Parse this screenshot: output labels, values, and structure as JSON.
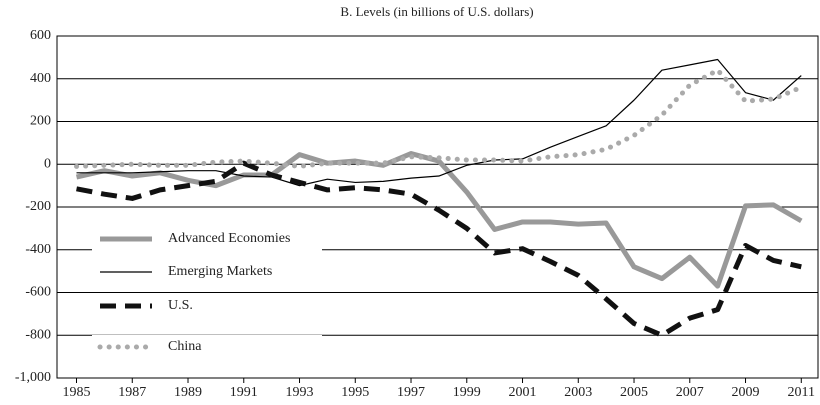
{
  "chart_data": {
    "type": "line",
    "title": "B. Levels (in billions of U.S. dollars)",
    "x": [
      1985,
      1986,
      1987,
      1988,
      1989,
      1990,
      1991,
      1992,
      1993,
      1994,
      1995,
      1996,
      1997,
      1998,
      1999,
      2000,
      2001,
      2002,
      2003,
      2004,
      2005,
      2006,
      2007,
      2008,
      2009,
      2010,
      2011
    ],
    "xlim": [
      1984.3,
      2011.6
    ],
    "xticks": [
      1985,
      1987,
      1989,
      1991,
      1993,
      1995,
      1997,
      1999,
      2001,
      2003,
      2005,
      2007,
      2009,
      2011
    ],
    "ylim": [
      -1000,
      600
    ],
    "yticks": [
      600,
      400,
      200,
      0,
      -200,
      -400,
      -600,
      -800,
      {
        "value": -1000,
        "label": "-1,000"
      }
    ],
    "grid": true,
    "legend": "lower left",
    "series": [
      {
        "name": "Advanced Economies",
        "color": "#999999",
        "style": "thick",
        "values": [
          -60,
          -30,
          -55,
          -40,
          -75,
          -100,
          -50,
          -50,
          45,
          5,
          15,
          -5,
          50,
          15,
          -130,
          -305,
          -270,
          -270,
          -280,
          -275,
          -480,
          -535,
          -435,
          -570,
          -195,
          -190,
          -265
        ]
      },
      {
        "name": "Emerging Markets",
        "color": "#000000",
        "style": "thin",
        "values": [
          -40,
          -40,
          -40,
          -35,
          -30,
          -30,
          -55,
          -60,
          -100,
          -70,
          -85,
          -80,
          -65,
          -55,
          -5,
          20,
          25,
          80,
          130,
          180,
          300,
          440,
          465,
          490,
          335,
          300,
          415
        ]
      },
      {
        "name": "U.S.",
        "color": "#111111",
        "style": "dashed",
        "values": [
          -115,
          -140,
          -160,
          -120,
          -100,
          -80,
          5,
          -50,
          -85,
          -120,
          -110,
          -120,
          -140,
          -215,
          -300,
          -415,
          -395,
          -455,
          -520,
          -630,
          -745,
          -800,
          -720,
          -680,
          -380,
          -450,
          -480
        ]
      },
      {
        "name": "China",
        "color": "#aaaaaa",
        "style": "dotted",
        "values": [
          -10,
          -5,
          0,
          -5,
          -5,
          10,
          15,
          5,
          -10,
          5,
          5,
          5,
          35,
          30,
          20,
          20,
          15,
          35,
          45,
          70,
          135,
          230,
          370,
          440,
          295,
          305,
          360
        ]
      }
    ]
  }
}
